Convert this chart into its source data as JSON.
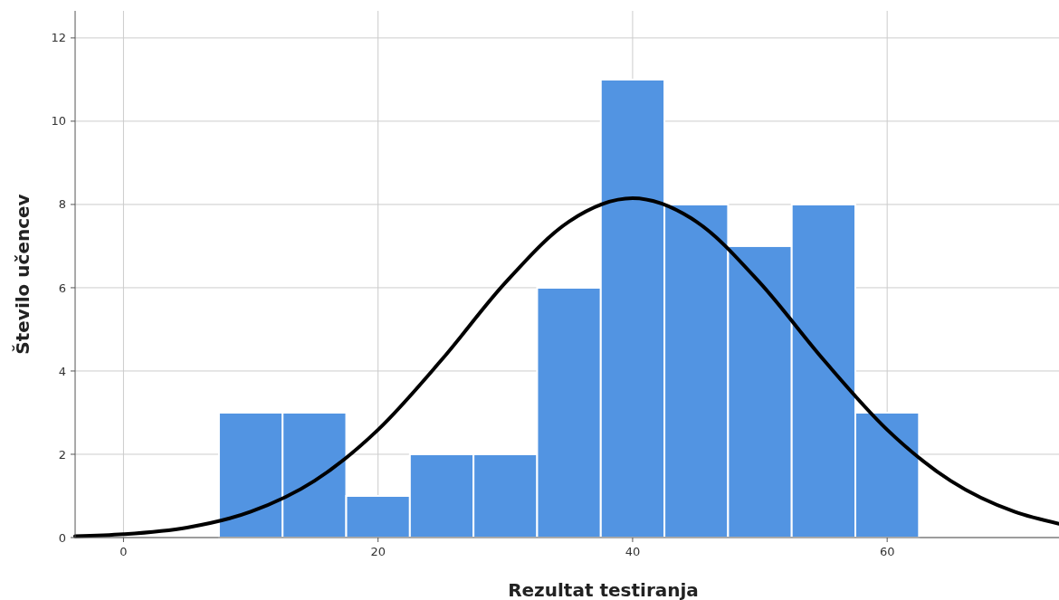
{
  "chart_data": {
    "type": "histogram",
    "xlabel": "Rezultat testiranja",
    "ylabel": "Število učencev",
    "bins": [
      7.5,
      12.5,
      17.5,
      22.5,
      27.5,
      32.5,
      37.5,
      42.5,
      47.5,
      52.5,
      57.5,
      62.5
    ],
    "values": [
      3,
      3,
      1,
      2,
      2,
      6,
      11,
      8,
      7,
      8,
      3
    ],
    "color": "#5294e2",
    "series": [
      {
        "type": "line",
        "color": "#000000",
        "x": [
          -3.8,
          0,
          5,
          10,
          15,
          20,
          25,
          30,
          35,
          40,
          45,
          50,
          55,
          60,
          65,
          70,
          73.5
        ],
        "values": [
          0.03,
          0.08,
          0.24,
          0.62,
          1.36,
          2.59,
          4.27,
          6.12,
          7.59,
          8.15,
          7.59,
          6.12,
          4.27,
          2.59,
          1.36,
          0.62,
          0.33
        ]
      }
    ],
    "xlim": [
      -3.8,
      73.5
    ],
    "xticks": [
      0,
      20,
      40,
      60
    ],
    "ylim": [
      0,
      12.65
    ],
    "yticks": [
      0,
      2,
      4,
      6,
      8,
      10,
      12
    ],
    "grid": true
  }
}
